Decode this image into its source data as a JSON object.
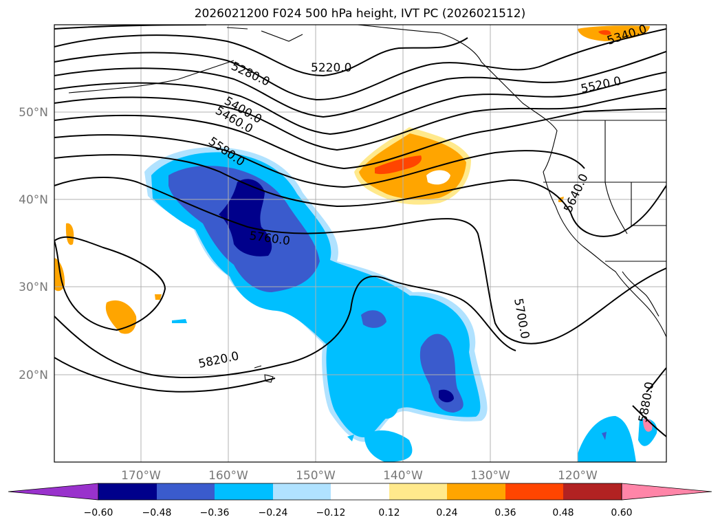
{
  "title": "2026021200 F024 500 hPa height, IVT PC (2026021512)",
  "axes": {
    "lon_labels": [
      "170°W",
      "160°W",
      "150°W",
      "140°W",
      "130°W",
      "120°W"
    ],
    "lat_labels": [
      "50°N",
      "40°N",
      "30°N",
      "20°N"
    ],
    "lon_range": [
      -180,
      -110
    ],
    "lat_range": [
      10,
      60
    ],
    "grid": true
  },
  "contour_labels": [
    "5220.0",
    "5280.0",
    "5340.0",
    "5400.0",
    "5460.0",
    "5520.0",
    "5580.0",
    "5640.0",
    "5700.0",
    "5760.0",
    "5820.0",
    "5880.0"
  ],
  "colorbar": {
    "ticks": [
      "−0.60",
      "−0.48",
      "−0.36",
      "−0.24",
      "−0.12",
      "0.12",
      "0.24",
      "0.36",
      "0.48",
      "0.60"
    ],
    "colors": [
      "#9932cc",
      "#00008b",
      "#3a5bcd",
      "#00bfff",
      "#b0e2ff",
      "#ffffff",
      "#ffe98c",
      "#ffa500",
      "#ff4500",
      "#b22222",
      "#ff85a8",
      "#ff85a8"
    ],
    "extend": "both"
  },
  "colors": {
    "dark_blue": "#00008b",
    "mid_blue": "#3a5bcd",
    "light_blue": "#00bfff",
    "pale_blue": "#b0e2ff",
    "pale_yellow": "#ffe98c",
    "orange": "#ffa500",
    "red_orange": "#ff4500",
    "pink": "#ff85a8"
  }
}
